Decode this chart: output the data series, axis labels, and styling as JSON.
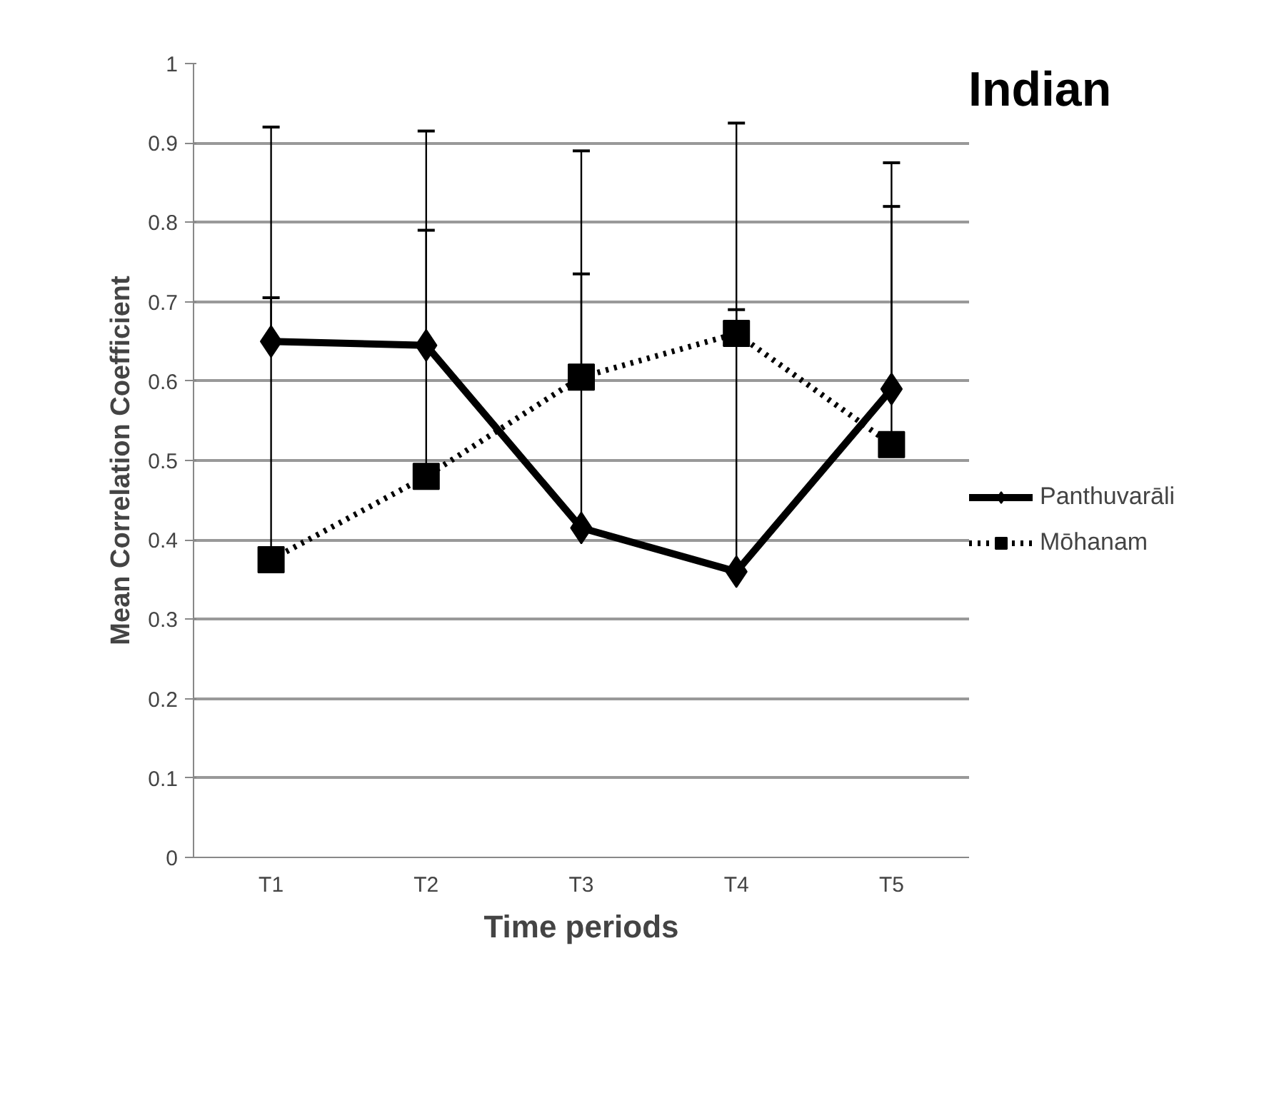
{
  "chart_data": {
    "type": "line",
    "title": "Indian",
    "xlabel": "Time periods",
    "ylabel": "Mean Correlation Coefficient",
    "categories": [
      "T1",
      "T2",
      "T3",
      "T4",
      "T5"
    ],
    "series": [
      {
        "name": "Panthuvarāli",
        "color": "#000000",
        "marker": "diamond",
        "line_style": "solid",
        "values": [
          0.65,
          0.645,
          0.415,
          0.36,
          0.59
        ],
        "errors": [
          [
            0.65,
            0.92
          ],
          [
            0.645,
            0.915
          ],
          [
            0.415,
            0.89
          ],
          [
            0.36,
            0.925
          ],
          [
            0.59,
            0.875
          ]
        ]
      },
      {
        "name": "Mōhanam",
        "color": "#000000",
        "marker": "square",
        "line_style": "dotted",
        "values": [
          0.375,
          0.48,
          0.605,
          0.66,
          0.52
        ],
        "errors": [
          [
            0.375,
            0.705
          ],
          [
            0.48,
            0.79
          ],
          [
            0.605,
            0.735
          ],
          [
            0.66,
            0.69
          ],
          [
            0.52,
            0.82
          ]
        ]
      }
    ],
    "ylim": [
      0,
      1
    ],
    "yticks": [
      0,
      0.1,
      0.2,
      0.3,
      0.4,
      0.5,
      0.6,
      0.7,
      0.8,
      0.9,
      1
    ],
    "grid": "y",
    "legend": "right"
  }
}
